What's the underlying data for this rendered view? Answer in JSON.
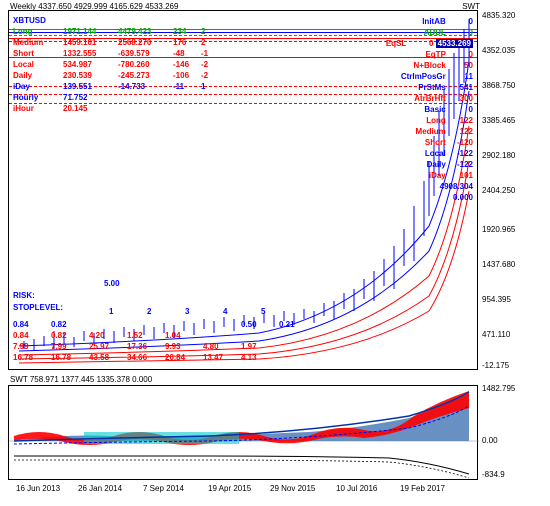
{
  "header": {
    "title": "Weekly 4337.650 4929.999 4165.629 4533.269",
    "swt_label": "SWT"
  },
  "main_chart": {
    "ylim": [
      -12.175,
      4835.32
    ],
    "yticks": [
      "4835.320",
      "4352.035",
      "3868.750",
      "3385.465",
      "2902.180",
      "2404.250",
      "1920.965",
      "1437.680",
      "954.395",
      "471.110",
      "-12.175"
    ],
    "special_labels": {
      "eqsl": "4533.269",
      "below": "4908.304",
      "zero": "0.000"
    },
    "hlines": [
      {
        "y": 18,
        "color": "#00aa00",
        "style": "solid"
      },
      {
        "y": 21,
        "color": "#0000ff",
        "style": "solid"
      },
      {
        "y": 24,
        "color": "#00aa00",
        "style": "dashed"
      },
      {
        "y": 27,
        "color": "#ff0000",
        "style": "solid"
      },
      {
        "y": 30,
        "color": "#ff0000",
        "style": "dashed"
      },
      {
        "y": 46,
        "color": "#ff0000",
        "style": "solid"
      },
      {
        "y": 75,
        "color": "#ff0000",
        "style": "dashed"
      },
      {
        "y": 83,
        "color": "#ff0000",
        "style": "dashed"
      },
      {
        "y": 92,
        "color": "#ff0000",
        "style": "dashed"
      }
    ],
    "left_rows": [
      {
        "color": "#0000ff",
        "cells": [
          "XBTUSD",
          "",
          "",
          "",
          ""
        ]
      },
      {
        "color": "#00aa00",
        "cells": [
          "Long",
          "1971.144",
          "4479.423",
          "234",
          "2"
        ]
      },
      {
        "color": "#ff0000",
        "cells": [
          "Medium",
          "1459.101",
          "2568.270",
          "176",
          "2"
        ]
      },
      {
        "color": "#ff0000",
        "cells": [
          "Short",
          "1332.555",
          "-639.579",
          "-48",
          "-1"
        ]
      },
      {
        "color": "#ff0000",
        "cells": [
          "Local",
          "534.987",
          "-780.260",
          "-146",
          "-2"
        ]
      },
      {
        "color": "#ff0000",
        "cells": [
          "Daily",
          "230.539",
          "-245.273",
          "-106",
          "-2"
        ]
      },
      {
        "color": "#0000ff",
        "cells": [
          "iDay",
          "139.551",
          "-14.733",
          "-11",
          "1"
        ]
      },
      {
        "color": "#0000ff",
        "cells": [
          "Hourly",
          "71.752",
          "",
          "",
          ""
        ]
      },
      {
        "color": "#ff0000",
        "cells": [
          "iHour",
          "20.145",
          "",
          "",
          ""
        ]
      }
    ],
    "right_rows": [
      {
        "color": "#0000ff",
        "label": "InitAB",
        "val": "0"
      },
      {
        "color": "#00aa00",
        "label": "ADDL",
        "val": "0"
      },
      {
        "color": "#ff0000",
        "label": "EqSL",
        "val": "0",
        "badge": "4533.269"
      },
      {
        "color": "#ff0000",
        "label": "EqTP",
        "val": "0"
      },
      {
        "color": "#ff0000",
        "label": "N+Block",
        "val": "50"
      },
      {
        "color": "#0000ff",
        "label": "CtrImPosGr",
        "val": "11"
      },
      {
        "color": "#0000ff",
        "label": "PrStMs",
        "val": "541"
      },
      {
        "color": "#ff0000",
        "label": "AtrBrHft",
        "val": "300"
      },
      {
        "color": "#0000ff",
        "label": "Basic",
        "val": "0"
      },
      {
        "color": "#ff0000",
        "label": "Long",
        "val": "122"
      },
      {
        "color": "#ff0000",
        "label": "Medium",
        "val": "122"
      },
      {
        "color": "#ff0000",
        "label": "Short",
        "val": "-120"
      },
      {
        "color": "#0000ff",
        "label": "Local",
        "val": "-122"
      },
      {
        "color": "#0000ff",
        "label": "Daily",
        "val": "-122"
      },
      {
        "color": "#ff0000",
        "label": "iDay",
        "val": "101"
      }
    ],
    "risk": "RISK:",
    "stop": "STOPLEVEL:",
    "five": "5.00",
    "bottom_seq": [
      "1",
      "2",
      "3",
      "4",
      "5"
    ],
    "row_nums": [
      {
        "color": "#0000ff",
        "vals": [
          "0.84",
          "0.82",
          "",
          "",
          "",
          " ",
          "0.50",
          "0.21"
        ]
      },
      {
        "color": "#ff0000",
        "vals": [
          "0.84",
          "0.82",
          "4.20",
          "1.52",
          "1.04",
          "",
          "",
          ""
        ]
      },
      {
        "color": "#ff0000",
        "vals": [
          "7.99",
          "7.99",
          "25.97",
          "17.36",
          "9.93",
          "4.80",
          "1.97",
          ""
        ]
      },
      {
        "color": "#ff0000",
        "vals": [
          "16.78",
          "16.78",
          "43.58",
          "34.66",
          "20.84",
          "13.47",
          "4.13",
          ""
        ]
      }
    ]
  },
  "sub_chart": {
    "header": "SWT 758.971 1377.445 1335.378 0.000",
    "ylim": [
      -834.9,
      1482.795
    ],
    "yticks": [
      "1482.795",
      "0.00",
      "-834.9"
    ]
  },
  "x_axis": {
    "labels": [
      "16 Jun 2013",
      "26 Jan 2014",
      "7 Sep 2014",
      "19 Apr 2015",
      "29 Nov 2015",
      "10 Jul 2016",
      "19 Feb 2017"
    ],
    "positions": [
      8,
      70,
      135,
      200,
      262,
      328,
      392
    ]
  },
  "colors": {
    "blue": "#0000ff",
    "red": "#ff0000",
    "green": "#00aa00",
    "cyan": "#00cccc",
    "fillblue": "#4d7db8",
    "darkblue": "#0033aa"
  }
}
